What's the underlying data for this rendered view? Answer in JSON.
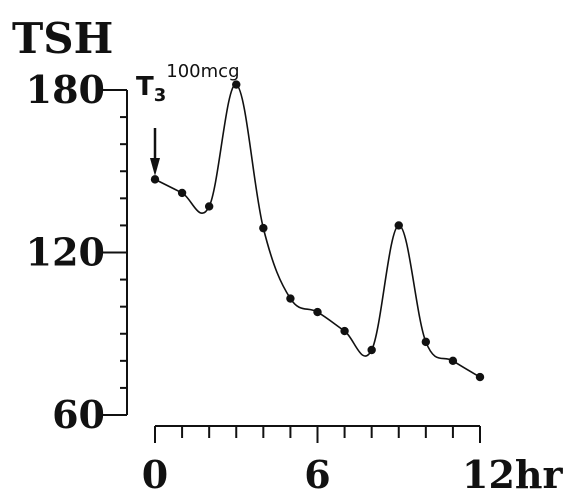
{
  "chart_data": {
    "type": "line",
    "title": "TSH",
    "xlabel": "",
    "ylabel": "TSH",
    "x_unit": "hr",
    "xlim": [
      0,
      12
    ],
    "ylim": [
      60,
      180
    ],
    "x_ticks": [
      0,
      6,
      12
    ],
    "x_tick_labels": [
      "0",
      "6",
      "12hr"
    ],
    "y_ticks": [
      60,
      120,
      180
    ],
    "y_tick_labels": [
      "60",
      "120",
      "180"
    ],
    "x_minor_step": 1,
    "y_minor_step": 10,
    "grid": false,
    "series": [
      {
        "x": [
          0,
          1,
          2,
          3,
          4,
          5,
          6,
          7,
          8,
          9,
          10,
          11,
          12
        ],
        "y": [
          147,
          142,
          137,
          182,
          129,
          103,
          98,
          91,
          84,
          130,
          87,
          80,
          74
        ]
      }
    ],
    "annotations": [
      {
        "text": "T3",
        "superscript": "100mcg",
        "x": 0,
        "arrow": true
      }
    ],
    "colors": {
      "ink": "#111111",
      "background": "#ffffff"
    }
  }
}
